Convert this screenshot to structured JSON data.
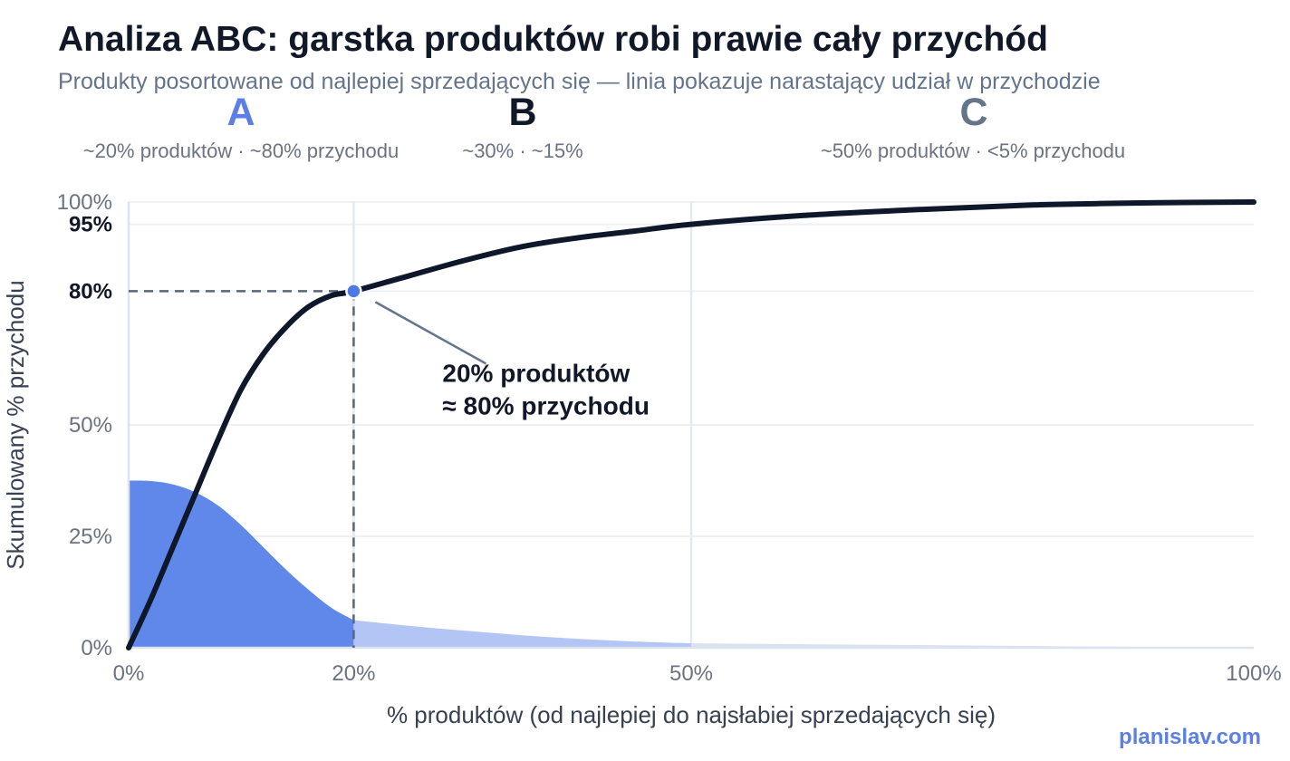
{
  "title": "Analiza ABC: garstka produktów robi prawie cały przychód",
  "subtitle": "Produkty posortowane od najlepiej sprzedających się — linia pokazuje narastający udział w przychodzie",
  "brand": "planislav.com",
  "colors": {
    "curve": "#0f172a",
    "accent": "#4f7ae6",
    "segmentA": "#5f88ea",
    "segmentB": "#b3c5f4",
    "segmentC": "#d9e1f1",
    "classA": "#5b7fe6",
    "classB": "#111827",
    "classC": "#64748b",
    "grid": "#edf1f6",
    "muted": "#6b7280"
  },
  "chart_data": {
    "type": "line",
    "xlabel": "% produktów (od najlepiej do najsłabiej sprzedających się)",
    "ylabel": "Skumulowany % przychodu",
    "xlim": [
      0,
      100
    ],
    "ylim": [
      0,
      100
    ],
    "x_ticks": [
      {
        "value": 0,
        "label": "0%"
      },
      {
        "value": 20,
        "label": "20%"
      },
      {
        "value": 50,
        "label": "50%"
      },
      {
        "value": 100,
        "label": "100%"
      }
    ],
    "y_ticks": [
      {
        "value": 0,
        "label": "0%",
        "bold": false
      },
      {
        "value": 25,
        "label": "25%",
        "bold": false
      },
      {
        "value": 50,
        "label": "50%",
        "bold": false
      },
      {
        "value": 80,
        "label": "80%",
        "bold": true
      },
      {
        "value": 95,
        "label": "95%",
        "bold": true
      },
      {
        "value": 100,
        "label": "100%",
        "bold": false
      }
    ],
    "grid": true,
    "cumulative_curve": {
      "x": [
        0,
        2,
        4,
        6,
        8,
        10,
        12,
        14,
        16,
        18,
        20,
        25,
        30,
        35,
        40,
        45,
        50,
        60,
        70,
        80,
        90,
        100
      ],
      "y": [
        0,
        11,
        23,
        35,
        47,
        58,
        66,
        72,
        76.5,
        79,
        80,
        83.5,
        87,
        90,
        92,
        93.5,
        95,
        97,
        98.3,
        99.3,
        99.8,
        100
      ]
    },
    "revenue_share": {
      "x": [
        0,
        2,
        4,
        6,
        8,
        10,
        12,
        14,
        16,
        18,
        20,
        25,
        30,
        35,
        40,
        45,
        50,
        60,
        70,
        80,
        90,
        100
      ],
      "y": [
        37.5,
        37.4,
        36.6,
        34.8,
        31.8,
        27.5,
        22.5,
        17.5,
        13,
        9,
        6.2,
        4.9,
        3.8,
        2.8,
        2.0,
        1.4,
        1.0,
        0.8,
        0.6,
        0.4,
        0.2,
        0
      ]
    },
    "segments": [
      {
        "name": "A",
        "from": 0,
        "to": 20,
        "caption": "~20% produktów · ~80% przychodu"
      },
      {
        "name": "B",
        "from": 20,
        "to": 50,
        "caption": "~30% · ~15%"
      },
      {
        "name": "C",
        "from": 50,
        "to": 100,
        "caption": "~50% produktów · <5% przychodu"
      }
    ],
    "highlight": {
      "x": 20,
      "y": 80
    },
    "annotation": [
      "20% produktów",
      "≈ 80% przychodu"
    ]
  }
}
